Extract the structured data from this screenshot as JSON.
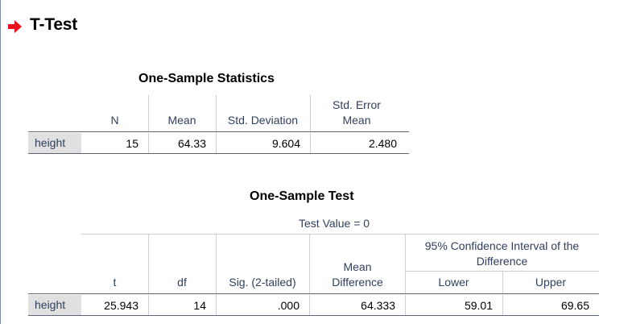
{
  "section_title": "T-Test",
  "stats_table": {
    "title": "One-Sample Statistics",
    "headers": {
      "n": "N",
      "mean": "Mean",
      "sd": "Std. Deviation",
      "se": "Std. Error Mean"
    },
    "row": {
      "label": "height",
      "n": "15",
      "mean": "64.33",
      "sd": "9.604",
      "se": "2.480"
    }
  },
  "test_table": {
    "title": "One-Sample Test",
    "test_value": "Test Value = 0",
    "ci_header": "95% Confidence Interval of the Difference",
    "headers": {
      "t": "t",
      "df": "df",
      "sig": "Sig. (2-tailed)",
      "md": "Mean Difference",
      "lower": "Lower",
      "upper": "Upper"
    },
    "row": {
      "label": "height",
      "t": "25.943",
      "df": "14",
      "sig": ".000",
      "md": "64.333",
      "lower": "59.01",
      "upper": "69.65"
    }
  },
  "colors": {
    "arrow": "#e8111c",
    "header_text": "#30405e",
    "row_label_bg": "#e0e0e0"
  }
}
